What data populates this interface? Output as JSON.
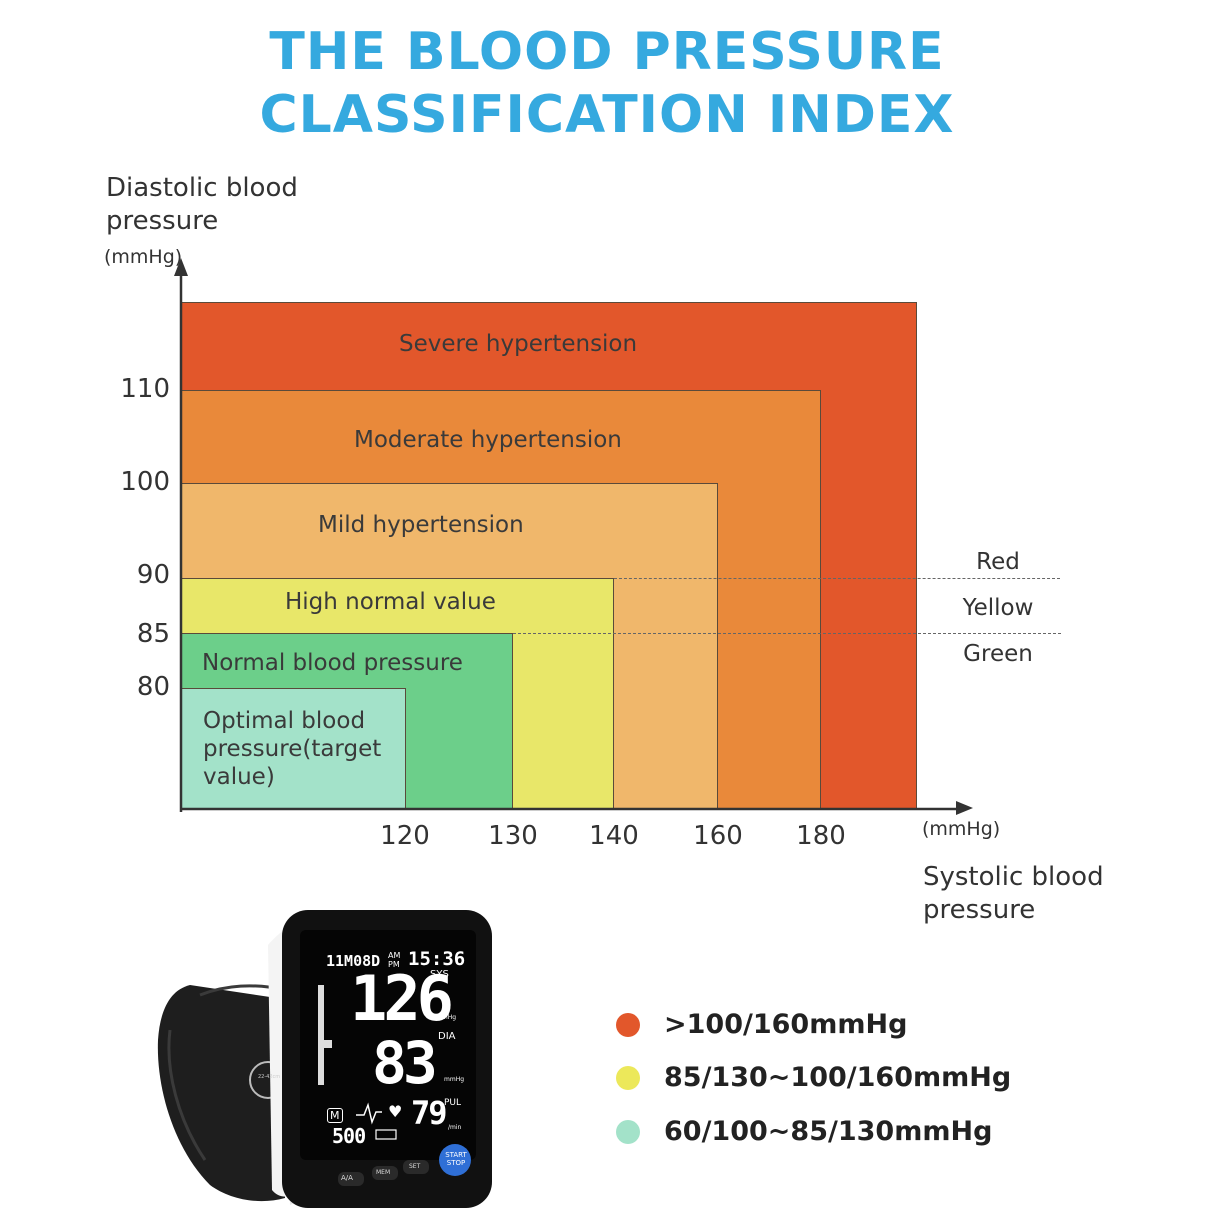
{
  "title": {
    "line1": "THE BLOOD PRESSURE",
    "line2": "CLASSIFICATION INDEX",
    "color": "#35a9df"
  },
  "y_axis": {
    "label_line1": "Diastolic blood",
    "label_line2": "pressure",
    "unit": "(mmHg)",
    "ticks": [
      "110",
      "100",
      "90",
      "85",
      "80"
    ]
  },
  "x_axis": {
    "label_line1": "Systolic blood",
    "label_line2": "pressure",
    "unit": "(mmHg)",
    "ticks": [
      "120",
      "130",
      "140",
      "160",
      "180"
    ]
  },
  "zones": [
    {
      "label": "Severe hypertension",
      "color": "#e2572b"
    },
    {
      "label": "Moderate hypertension",
      "color": "#e9893a"
    },
    {
      "label": "Mild hypertension",
      "color": "#f0b76b"
    },
    {
      "label": "High normal value",
      "color": "#e8e769"
    },
    {
      "label": "Normal blood pressure",
      "color": "#6ccf8a"
    },
    {
      "label_line1": "Optimal blood",
      "label_line2": "pressure(target",
      "label_line3": "value)",
      "color": "#a3e2c9"
    }
  ],
  "zone_legend": {
    "red": "Red",
    "yellow": "Yellow",
    "green": "Green"
  },
  "legend": [
    {
      "text": ">100/160mmHg",
      "color": "#e2572b"
    },
    {
      "text": "85/130~100/160mmHg",
      "color": "#ece85a"
    },
    {
      "text": "60/100~85/130mmHg",
      "color": "#a3e2c9"
    }
  ],
  "device": {
    "date": "11M08D",
    "ampm": "AM PM",
    "time": "15:36",
    "sys_label": "SYS",
    "sys_value": "126",
    "dia_label": "DIA",
    "dia_value": "83",
    "pul_label": "PUL",
    "pul_value": "79",
    "unit": "mmHg",
    "pul_unit": "/min",
    "memory": "500",
    "mem_icon": "M",
    "buttons": [
      "A/A",
      "MEM",
      "SET"
    ],
    "start_stop": "START STOP",
    "cuff_size": "22-42cm"
  }
}
